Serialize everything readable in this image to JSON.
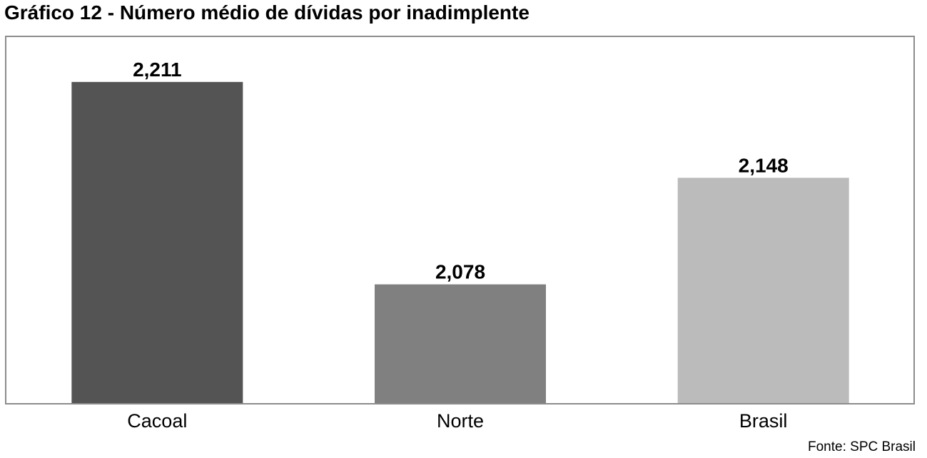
{
  "title": "Gráfico 12 - Número médio de dívidas por inadimplente",
  "source": "Fonte: SPC Brasil",
  "chart_data": {
    "type": "bar",
    "categories": [
      "Cacoal",
      "Norte",
      "Brasil"
    ],
    "values": [
      2.211,
      2.078,
      2.148
    ],
    "data_labels": [
      "2,211",
      "2,078",
      "2,148"
    ],
    "colors": [
      "#545454",
      "#808080",
      "#bbbbbb"
    ],
    "xlabel": "",
    "ylabel": "",
    "ylim": [
      2.0,
      2.24
    ],
    "grid": false,
    "legend": "none"
  }
}
